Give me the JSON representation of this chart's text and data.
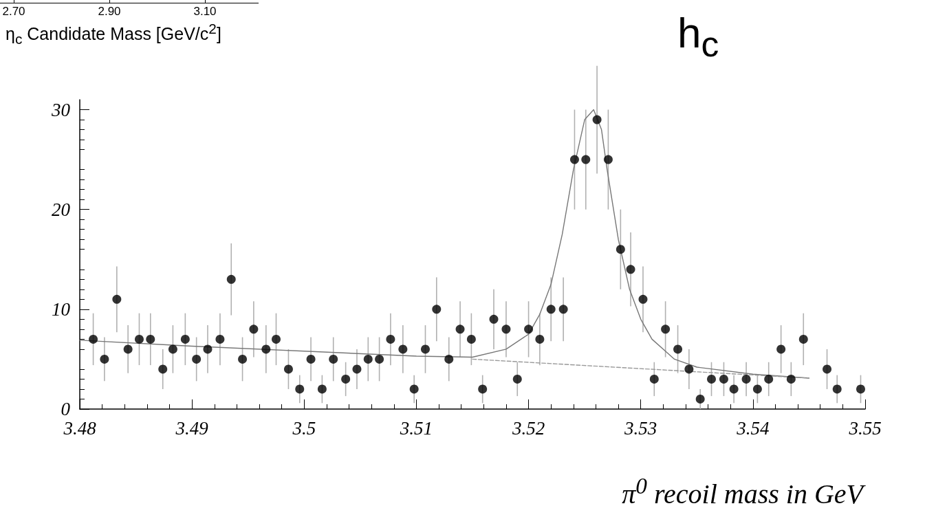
{
  "chart_data": [
    {
      "type": "other",
      "xlabel": "η$_{c}$ Candidate Mass [GeV/c$^{2}$]",
      "annotations": [
        "2.70",
        "2.90",
        "3.10"
      ]
    },
    {
      "type": "scatter",
      "xlabel": "π$^{0}$ recoil mass in GeV",
      "annotations": [
        "h$_{c}$"
      ],
      "xlim": [
        3.48,
        3.55
      ],
      "xticks": [
        3.48,
        3.49,
        3.5,
        3.51,
        3.52,
        3.53,
        3.54,
        3.55
      ],
      "ylim": [
        0,
        31
      ],
      "yticks": [
        0,
        10,
        20,
        30
      ],
      "grid": false,
      "series": [
        {
          "type": "scatter",
          "color": "#000000",
          "marker": "circle",
          "x": [
            3.4812,
            3.4822,
            3.4833,
            3.4843,
            3.4853,
            3.4863,
            3.4874,
            3.4883,
            3.4894,
            3.4904,
            3.4914,
            3.4925,
            3.4935,
            3.4945,
            3.4955,
            3.4966,
            3.4975,
            3.4986,
            3.4996,
            3.5006,
            3.5016,
            3.5026,
            3.5037,
            3.5047,
            3.5057,
            3.5067,
            3.5077,
            3.5088,
            3.5098,
            3.5108,
            3.5118,
            3.5129,
            3.5139,
            3.5149,
            3.5159,
            3.5169,
            3.518,
            3.519,
            3.52,
            3.521,
            3.522,
            3.5231,
            3.5241,
            3.5251,
            3.5261,
            3.5271,
            3.5282,
            3.5291,
            3.5302,
            3.5312,
            3.5322,
            3.5333,
            3.5343,
            3.5353,
            3.5363,
            3.5374,
            3.5383,
            3.5394,
            3.5404,
            3.5414,
            3.5425,
            3.5434,
            3.5445,
            3.5466,
            3.5475,
            3.5496
          ],
          "values": [
            7,
            5,
            11,
            6,
            7,
            7,
            4,
            6,
            7,
            5,
            6,
            7,
            13,
            5,
            8,
            6,
            7,
            4,
            2,
            5,
            2,
            5,
            3,
            4,
            5,
            5,
            7,
            6,
            2,
            6,
            10,
            5,
            8,
            7,
            2,
            9,
            8,
            3,
            8,
            7,
            10,
            10,
            25,
            25,
            29,
            25,
            16,
            14,
            11,
            3,
            8,
            6,
            4,
            1,
            3,
            3,
            2,
            3,
            2,
            3,
            6,
            3,
            7,
            4,
            2,
            2
          ],
          "errors": [
            2.6,
            2.2,
            3.3,
            2.4,
            2.6,
            2.6,
            2,
            2.4,
            2.6,
            2.2,
            2.4,
            2.6,
            3.6,
            2.2,
            2.8,
            2.4,
            2.6,
            2,
            1.4,
            2.2,
            1.4,
            2.2,
            1.7,
            2,
            2.2,
            2.2,
            2.6,
            2.4,
            1.4,
            2.4,
            3.2,
            2.2,
            2.8,
            2.6,
            1.4,
            3,
            2.8,
            1.7,
            2.8,
            2.6,
            3.2,
            3.2,
            5,
            5,
            5.4,
            5,
            4,
            3.7,
            3.3,
            1.7,
            2.8,
            2.4,
            2,
            1,
            1.7,
            1.7,
            1.4,
            1.7,
            1.4,
            1.7,
            2.4,
            1.7,
            2.6,
            2,
            1.4,
            1.4
          ]
        },
        {
          "type": "line",
          "color": "#777777",
          "line_style": "solid",
          "marker": "none",
          "x": [
            3.48,
            3.49,
            3.5,
            3.51,
            3.515,
            3.518,
            3.52,
            3.521,
            3.522,
            3.523,
            3.524,
            3.525,
            3.5258,
            3.5265,
            3.527,
            3.528,
            3.529,
            3.53,
            3.531,
            3.533,
            3.535,
            3.54,
            3.545
          ],
          "values": [
            6.9,
            6.3,
            5.8,
            5.3,
            5.2,
            6,
            7.5,
            9.5,
            12.5,
            17.5,
            24,
            29,
            30,
            28,
            24,
            17,
            12,
            9,
            7,
            5,
            4.2,
            3.5,
            3.1
          ]
        },
        {
          "type": "line",
          "color": "#999999",
          "line_style": "dashed",
          "marker": "none",
          "x": [
            3.515,
            3.545
          ],
          "values": [
            5,
            3.1
          ]
        }
      ]
    }
  ]
}
